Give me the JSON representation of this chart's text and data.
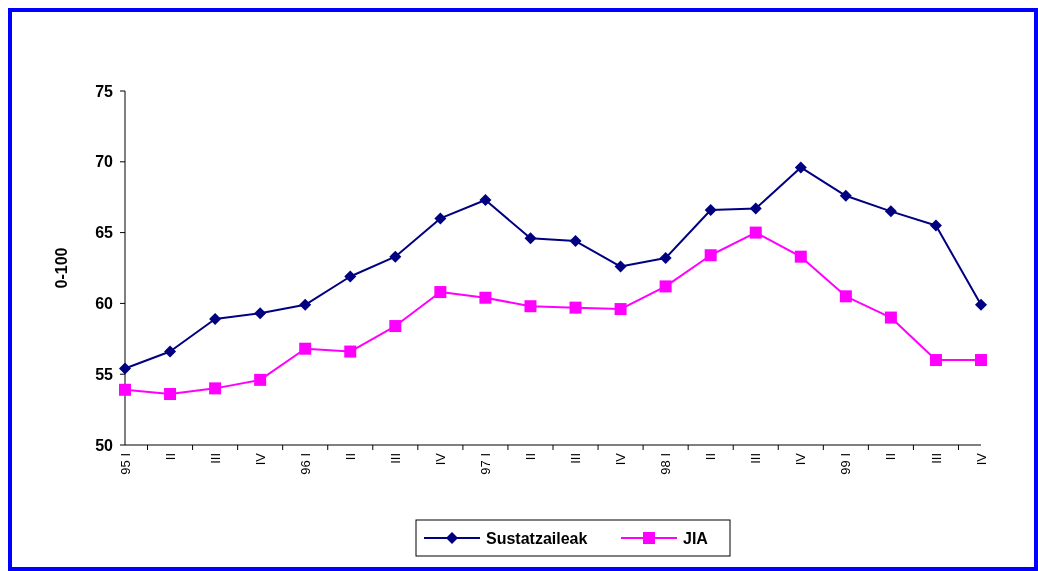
{
  "chart_data": {
    "type": "line",
    "ylabel": "0-100",
    "categories": [
      "95 I",
      "II",
      "III",
      "IV",
      "96 I",
      "II",
      "III",
      "IV",
      "97 I",
      "II",
      "III",
      "IV",
      "98 I",
      "II",
      "III",
      "IV",
      "99 I",
      "II",
      "III",
      "IV"
    ],
    "series": [
      {
        "name": "Sustatzaileak",
        "color": "#000080",
        "marker": "diamond",
        "values": [
          55.4,
          56.6,
          58.9,
          59.3,
          59.9,
          61.9,
          63.3,
          66.0,
          67.3,
          64.6,
          64.4,
          62.6,
          63.2,
          66.6,
          66.7,
          69.6,
          67.6,
          66.5,
          65.5,
          59.9
        ]
      },
      {
        "name": "JIA",
        "color": "#ff00ff",
        "marker": "square",
        "values": [
          53.9,
          53.6,
          54.0,
          54.6,
          56.8,
          56.6,
          58.4,
          60.8,
          60.4,
          59.8,
          59.7,
          59.6,
          61.2,
          63.4,
          65.0,
          63.3,
          60.5,
          59.0,
          56.0,
          56.0
        ]
      }
    ],
    "ylim": [
      50,
      75
    ],
    "yticks": [
      50,
      55,
      60,
      65,
      70,
      75
    ],
    "grid": false,
    "legend": "bottom"
  }
}
